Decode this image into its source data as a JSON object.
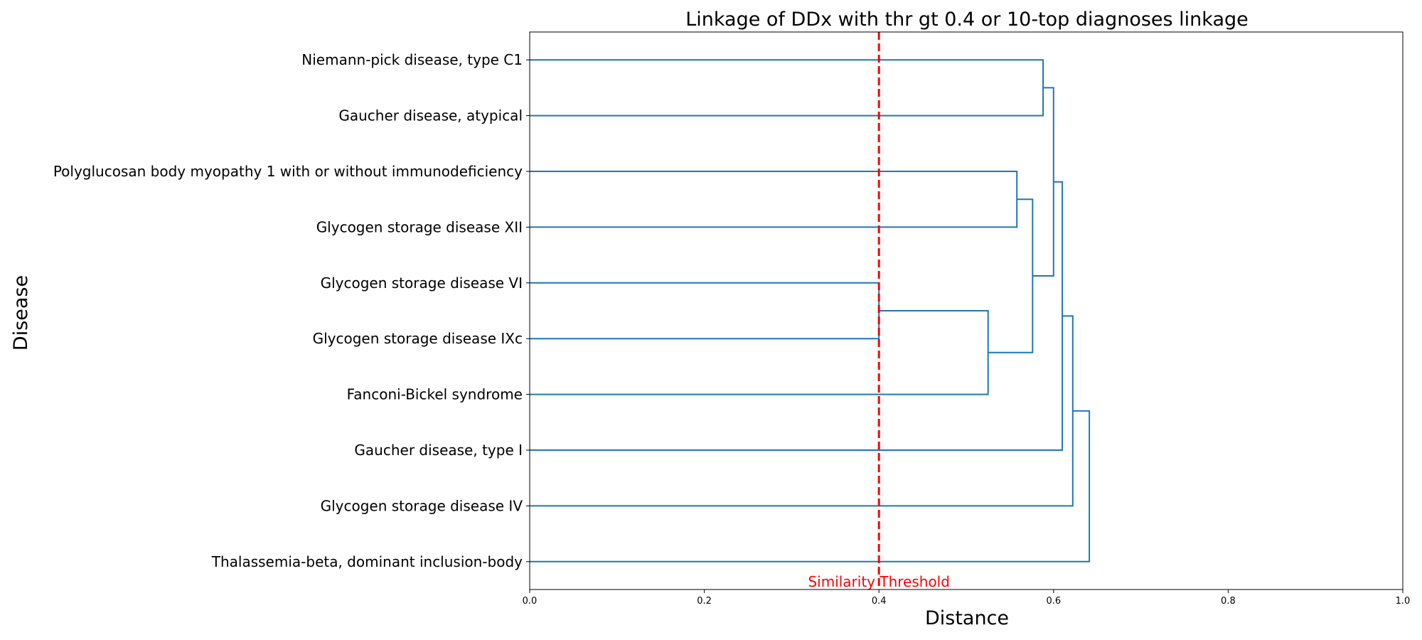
{
  "chart_data": {
    "type": "dendrogram",
    "orientation": "horizontal",
    "title": "Linkage of DDx with thr gt 0.4 or 10-top diagnoses linkage",
    "xlabel": "Distance",
    "ylabel": "Disease",
    "xlim": [
      0.0,
      1.0
    ],
    "xticks": [
      "0.0",
      "0.2",
      "0.4",
      "0.6",
      "0.8",
      "1.0"
    ],
    "labels": [
      "Niemann-pick disease, type C1",
      "Gaucher disease, atypical",
      "Polyglucosan body myopathy 1 with or without immunodeficiency",
      "Glycogen storage disease XII",
      "Glycogen storage disease VI",
      "Glycogen storage disease IXc",
      "Fanconi-Bickel syndrome",
      "Gaucher disease, type I",
      "Glycogen storage disease IV",
      "Thalassemia-beta, dominant inclusion-body"
    ],
    "merges": [
      {
        "left": 4,
        "right": 5,
        "distance": 0.4
      },
      {
        "left": 10,
        "right": 6,
        "distance": 0.525
      },
      {
        "left": 2,
        "right": 3,
        "distance": 0.558
      },
      {
        "left": 12,
        "right": 11,
        "distance": 0.576
      },
      {
        "left": 0,
        "right": 1,
        "distance": 0.588
      },
      {
        "left": 14,
        "right": 13,
        "distance": 0.6
      },
      {
        "left": 15,
        "right": 7,
        "distance": 0.61
      },
      {
        "left": 16,
        "right": 8,
        "distance": 0.622
      },
      {
        "left": 17,
        "right": 9,
        "distance": 0.641
      }
    ],
    "threshold": {
      "value": 0.4,
      "label": "Similarity Threshold"
    },
    "colors": {
      "link": "#1f77b4",
      "threshold": "#ff0000",
      "axis": "#000000"
    }
  }
}
